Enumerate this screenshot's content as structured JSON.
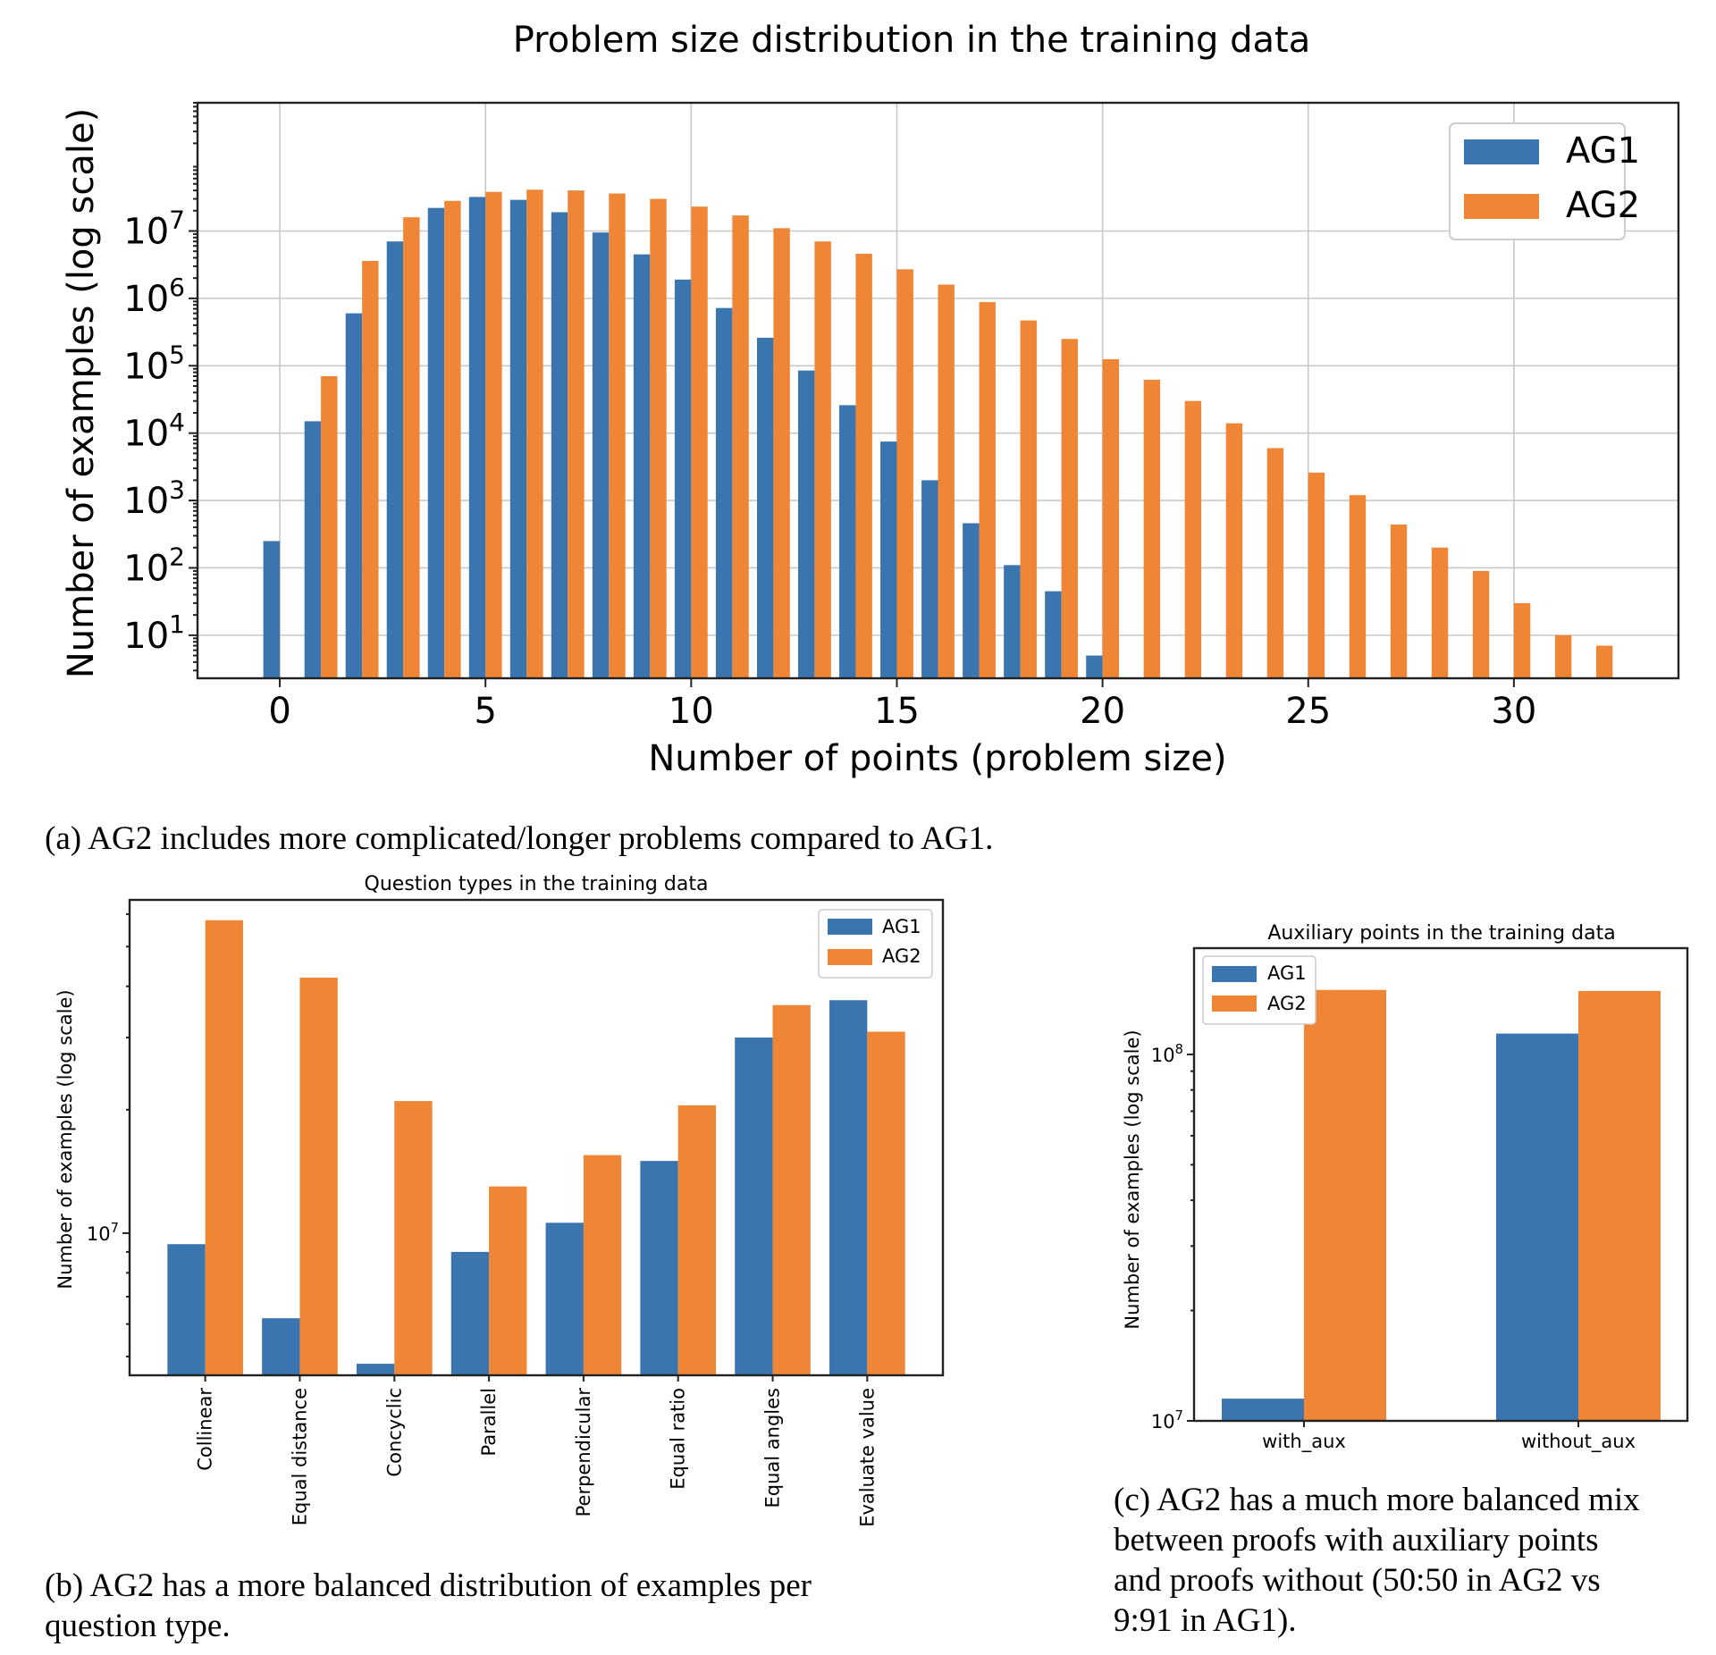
{
  "colors": {
    "ag1": "#3A75B0",
    "ag2": "#EE8636"
  },
  "chart_data": [
    {
      "id": "a",
      "type": "bar",
      "title": "Problem size distribution in the training data",
      "xlabel": "Number of points (problem size)",
      "ylabel": "Number of examples (log scale)",
      "yscale": "log",
      "xlim": [
        -2,
        34
      ],
      "ylim": [
        2.3,
        800000000
      ],
      "xticks": [
        "0",
        "5",
        "10",
        "15",
        "20",
        "25",
        "30"
      ],
      "yticks": [
        {
          "base": "10",
          "exp": "1"
        },
        {
          "base": "10",
          "exp": "2"
        },
        {
          "base": "10",
          "exp": "3"
        },
        {
          "base": "10",
          "exp": "4"
        },
        {
          "base": "10",
          "exp": "5"
        },
        {
          "base": "10",
          "exp": "6"
        },
        {
          "base": "10",
          "exp": "7"
        }
      ],
      "grid": true,
      "legend_position": "top-right",
      "x": [
        0,
        1,
        2,
        3,
        4,
        5,
        6,
        7,
        8,
        9,
        10,
        11,
        12,
        13,
        14,
        15,
        16,
        17,
        18,
        19,
        20,
        21,
        22,
        23,
        24,
        25,
        26,
        27,
        28,
        29,
        30,
        31,
        32
      ],
      "series": [
        {
          "name": "AG1",
          "values": [
            250,
            15000,
            600000,
            7000000,
            22000000,
            32000000,
            29000000,
            19000000,
            9500000,
            4500000,
            1900000,
            720000,
            260000,
            85000,
            26000,
            7500,
            2000,
            460,
            110,
            45,
            5,
            null,
            null,
            null,
            null,
            null,
            null,
            null,
            null,
            null,
            null,
            null,
            null
          ]
        },
        {
          "name": "AG2",
          "values": [
            null,
            70000,
            3600000,
            16000000,
            28000000,
            38000000,
            41000000,
            40000000,
            36000000,
            30000000,
            23000000,
            17000000,
            11000000,
            7000000,
            4600000,
            2700000,
            1600000,
            880000,
            470000,
            250000,
            125000,
            62000,
            30000,
            14000,
            6000,
            2600,
            1200,
            440,
            200,
            90,
            30,
            10,
            7
          ]
        }
      ],
      "caption": "(a) AG2 includes more complicated/longer problems compared to AG1."
    },
    {
      "id": "b",
      "type": "bar",
      "title": "Question types in the training data",
      "ylabel": "Number of examples (log scale)",
      "yscale": "log",
      "ylim": [
        4500000,
        65000000
      ],
      "yticks": [
        {
          "base": "10",
          "exp": "7"
        }
      ],
      "grid": false,
      "legend_position": "top-right",
      "categories": [
        "Collinear",
        "Equal distance",
        "Concyclic",
        "Parallel",
        "Perpendicular",
        "Equal ratio",
        "Equal angles",
        "Evaluate value"
      ],
      "series": [
        {
          "name": "AG1",
          "values": [
            9400000,
            6200000,
            4800000,
            9000000,
            10600000,
            15000000,
            30000000,
            37000000
          ]
        },
        {
          "name": "AG2",
          "values": [
            58000000,
            42000000,
            21000000,
            13000000,
            15500000,
            20500000,
            36000000,
            31000000
          ]
        }
      ],
      "caption": "(b) AG2 has a more balanced distribution of examples per question type."
    },
    {
      "id": "c",
      "type": "bar",
      "title": "Auxiliary points in the training data",
      "ylabel": "Number of examples (log scale)",
      "yscale": "log",
      "ylim": [
        10000000,
        195000000
      ],
      "yticks": [
        {
          "base": "10",
          "exp": "7"
        },
        {
          "base": "10",
          "exp": "8"
        }
      ],
      "grid": false,
      "legend_position": "top-left",
      "categories": [
        "with_aux",
        "without_aux"
      ],
      "series": [
        {
          "name": "AG1",
          "values": [
            11500000,
            114000000
          ]
        },
        {
          "name": "AG2",
          "values": [
            150000000,
            149000000
          ]
        }
      ],
      "caption": "(c) AG2 has a much more balanced mix between proofs with auxiliary points and proofs without (50:50 in AG2 vs 9:91 in AG1)."
    }
  ]
}
